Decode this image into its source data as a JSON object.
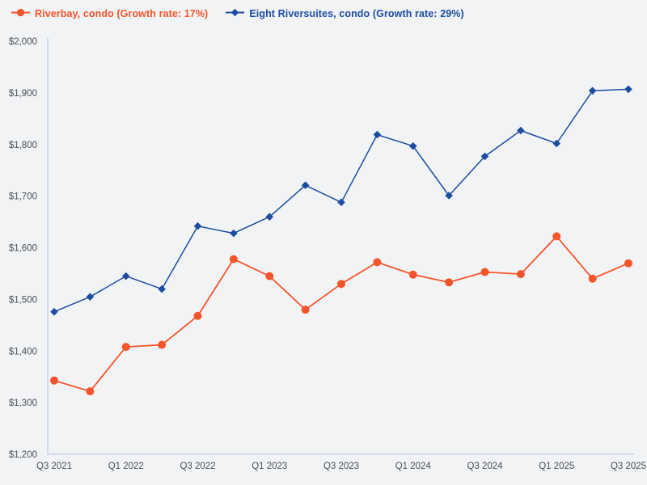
{
  "legend": {
    "items": [
      {
        "label": "Riverbay, condo (Growth rate: 17%)",
        "color": "#f5542c",
        "marker": "circle"
      },
      {
        "label": "Eight Riversuites, condo (Growth rate: 29%)",
        "color": "#1c4da1",
        "marker": "diamond"
      }
    ]
  },
  "chart_data": {
    "type": "line",
    "title": "",
    "xlabel": "",
    "ylabel": "",
    "x": [
      "Q3 2021",
      "Q4 2021",
      "Q1 2022",
      "Q2 2022",
      "Q3 2022",
      "Q4 2022",
      "Q1 2023",
      "Q2 2023",
      "Q3 2023",
      "Q4 2023",
      "Q1 2024",
      "Q2 2024",
      "Q3 2024",
      "Q4 2024",
      "Q1 2025",
      "Q2 2025",
      "Q3 2025"
    ],
    "x_tick_labels_shown": [
      "Q3 2021",
      "Q1 2022",
      "Q3 2022",
      "Q1 2023",
      "Q3 2023",
      "Q1 2024",
      "Q3 2024",
      "Q1 2025",
      "Q3 2025"
    ],
    "series": [
      {
        "name": "Riverbay, condo",
        "growth_rate": "17%",
        "marker": "circle",
        "color": "#f5542c",
        "values": [
          1343,
          1322,
          1408,
          1412,
          1468,
          1578,
          1545,
          1480,
          1530,
          1572,
          1548,
          1533,
          1553,
          1549,
          1622,
          1540,
          1570
        ]
      },
      {
        "name": "Eight Riversuites, condo",
        "growth_rate": "29%",
        "marker": "diamond",
        "color": "#1c4da1",
        "values": [
          1476,
          1505,
          1545,
          1520,
          1642,
          1628,
          1660,
          1721,
          1688,
          1819,
          1797,
          1701,
          1777,
          1827,
          1802,
          1904,
          1907
        ]
      }
    ],
    "ylim": [
      1200,
      2000
    ],
    "y_tick_step": 100,
    "y_tick_prefix": "$",
    "grid": false,
    "legend_position": "top-left",
    "colors": {
      "background": "#f2f3f5",
      "axis": "#c5d2e8",
      "tick_label": "#4b4f57"
    }
  }
}
